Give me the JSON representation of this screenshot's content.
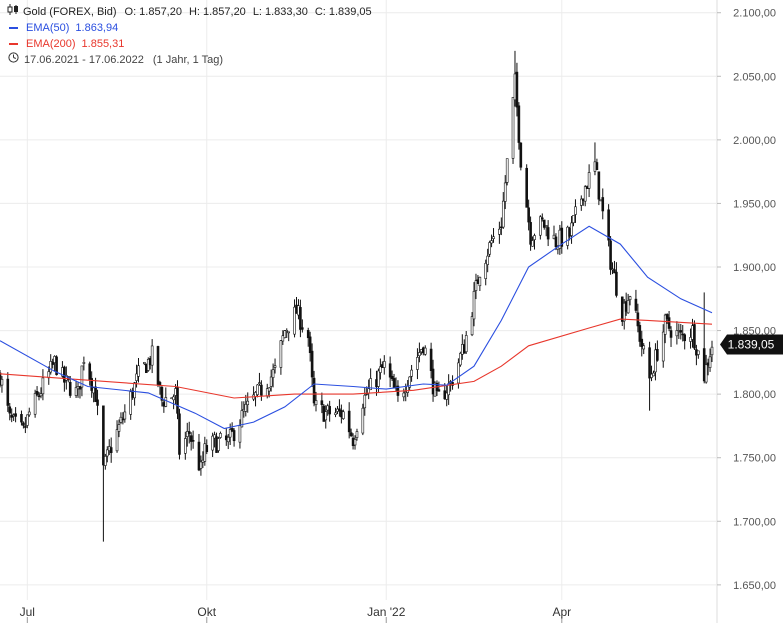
{
  "header": {
    "instrument": "Gold (FOREX, Bid)",
    "ohlc": {
      "open_label": "O:",
      "open": "1.857,20",
      "high_label": "H:",
      "high": "1.857,20",
      "low_label": "L:",
      "low": "1.833,30",
      "close_label": "C:",
      "close": "1.839,05"
    },
    "ema50": {
      "label": "EMA(50)",
      "value": "1.863,94",
      "color": "#2b4fe0"
    },
    "ema200": {
      "label": "EMA(200)",
      "value": "1.855,31",
      "color": "#e8372c"
    },
    "range": "17.06.2021 - 17.06.2022",
    "period": "(1 Jahr, 1 Tag)"
  },
  "icons": {
    "chart": "candlestick-icon",
    "clock": "clock-icon"
  },
  "colors": {
    "candle": "#111111",
    "grid": "#ececec",
    "axis_text": "#555555",
    "price_tag": "#111111"
  },
  "chart_data": {
    "type": "candlestick",
    "x_start": "2021-06-17",
    "x_end": "2022-06-17",
    "ylim": [
      1620,
      2110
    ],
    "y_ticks": [
      {
        "value": 1650,
        "label": "1.650,00"
      },
      {
        "value": 1700,
        "label": "1.700,00"
      },
      {
        "value": 1750,
        "label": "1.750,00"
      },
      {
        "value": 1800,
        "label": "1.800,00"
      },
      {
        "value": 1850,
        "label": "1.850,00"
      },
      {
        "value": 1900,
        "label": "1.900,00"
      },
      {
        "value": 1950,
        "label": "1.950,00"
      },
      {
        "value": 2000,
        "label": "2.000,00"
      },
      {
        "value": 2050,
        "label": "2.050,00"
      },
      {
        "value": 2100,
        "label": "2.100,00"
      }
    ],
    "x_ticks": [
      {
        "date": "2021-07-01",
        "label": "Jul"
      },
      {
        "date": "2021-10-01",
        "label": "Okt"
      },
      {
        "date": "2022-01-01",
        "label": "Jan '22"
      },
      {
        "date": "2022-04-01",
        "label": "Apr"
      }
    ],
    "last_price": {
      "value": 1839.05,
      "label": "1.839,05"
    },
    "price_path": [
      [
        "2021-06-17",
        1815
      ],
      [
        "2021-06-22",
        1780
      ],
      [
        "2021-06-29",
        1770
      ],
      [
        "2021-07-02",
        1785
      ],
      [
        "2021-07-07",
        1800
      ],
      [
        "2021-07-15",
        1825
      ],
      [
        "2021-07-20",
        1810
      ],
      [
        "2021-07-27",
        1800
      ],
      [
        "2021-07-30",
        1830
      ],
      [
        "2021-08-05",
        1800
      ],
      [
        "2021-08-09",
        1740
      ],
      [
        "2021-08-12",
        1755
      ],
      [
        "2021-08-20",
        1785
      ],
      [
        "2021-08-27",
        1815
      ],
      [
        "2021-09-03",
        1830
      ],
      [
        "2021-09-08",
        1795
      ],
      [
        "2021-09-15",
        1800
      ],
      [
        "2021-09-17",
        1755
      ],
      [
        "2021-09-22",
        1770
      ],
      [
        "2021-09-28",
        1740
      ],
      [
        "2021-09-30",
        1755
      ],
      [
        "2021-10-05",
        1762
      ],
      [
        "2021-10-12",
        1762
      ],
      [
        "2021-10-20",
        1785
      ],
      [
        "2021-10-27",
        1800
      ],
      [
        "2021-11-05",
        1818
      ],
      [
        "2021-11-10",
        1850
      ],
      [
        "2021-11-16",
        1865
      ],
      [
        "2021-11-22",
        1845
      ],
      [
        "2021-11-25",
        1790
      ],
      [
        "2021-12-01",
        1785
      ],
      [
        "2021-12-10",
        1785
      ],
      [
        "2021-12-15",
        1765
      ],
      [
        "2021-12-20",
        1795
      ],
      [
        "2021-12-31",
        1822
      ],
      [
        "2022-01-07",
        1795
      ],
      [
        "2022-01-14",
        1820
      ],
      [
        "2022-01-20",
        1840
      ],
      [
        "2022-01-27",
        1795
      ],
      [
        "2022-02-03",
        1808
      ],
      [
        "2022-02-10",
        1838
      ],
      [
        "2022-02-18",
        1898
      ],
      [
        "2022-02-24",
        1920
      ],
      [
        "2022-03-01",
        1935
      ],
      [
        "2022-03-08",
        2045
      ],
      [
        "2022-03-11",
        1985
      ],
      [
        "2022-03-16",
        1925
      ],
      [
        "2022-03-22",
        1935
      ],
      [
        "2022-03-29",
        1920
      ],
      [
        "2022-04-05",
        1925
      ],
      [
        "2022-04-12",
        1960
      ],
      [
        "2022-04-18",
        1980
      ],
      [
        "2022-04-21",
        1950
      ],
      [
        "2022-04-26",
        1905
      ],
      [
        "2022-05-02",
        1865
      ],
      [
        "2022-05-06",
        1880
      ],
      [
        "2022-05-10",
        1852
      ],
      [
        "2022-05-16",
        1812
      ],
      [
        "2022-05-24",
        1855
      ],
      [
        "2022-06-01",
        1845
      ],
      [
        "2022-06-07",
        1850
      ],
      [
        "2022-06-13",
        1815
      ],
      [
        "2022-06-17",
        1839
      ]
    ],
    "ema50_path": [
      [
        "2021-06-17",
        1842
      ],
      [
        "2021-07-15",
        1818
      ],
      [
        "2021-08-01",
        1806
      ],
      [
        "2021-09-01",
        1801
      ],
      [
        "2021-09-25",
        1785
      ],
      [
        "2021-10-10",
        1773
      ],
      [
        "2021-10-25",
        1778
      ],
      [
        "2021-11-10",
        1790
      ],
      [
        "2021-11-25",
        1808
      ],
      [
        "2021-12-15",
        1806
      ],
      [
        "2022-01-01",
        1804
      ],
      [
        "2022-01-20",
        1808
      ],
      [
        "2022-02-01",
        1807
      ],
      [
        "2022-02-15",
        1822
      ],
      [
        "2022-03-01",
        1858
      ],
      [
        "2022-03-15",
        1900
      ],
      [
        "2022-04-01",
        1918
      ],
      [
        "2022-04-15",
        1932
      ],
      [
        "2022-05-01",
        1918
      ],
      [
        "2022-05-15",
        1892
      ],
      [
        "2022-06-01",
        1875
      ],
      [
        "2022-06-17",
        1864
      ]
    ],
    "ema200_path": [
      [
        "2021-06-17",
        1816
      ],
      [
        "2021-08-01",
        1811
      ],
      [
        "2021-09-15",
        1806
      ],
      [
        "2021-10-15",
        1797
      ],
      [
        "2021-11-15",
        1800
      ],
      [
        "2021-12-15",
        1800
      ],
      [
        "2022-01-15",
        1803
      ],
      [
        "2022-02-15",
        1810
      ],
      [
        "2022-03-01",
        1822
      ],
      [
        "2022-03-15",
        1838
      ],
      [
        "2022-04-15",
        1852
      ],
      [
        "2022-05-01",
        1859
      ],
      [
        "2022-05-15",
        1858
      ],
      [
        "2022-06-17",
        1855
      ]
    ],
    "wicks": [
      {
        "date": "2021-08-09",
        "low": 1684,
        "high": 1746
      },
      {
        "date": "2022-03-08",
        "high": 2070
      },
      {
        "date": "2022-04-18",
        "high": 1998
      },
      {
        "date": "2022-05-16",
        "low": 1787
      },
      {
        "date": "2022-06-13",
        "high": 1880
      }
    ]
  }
}
